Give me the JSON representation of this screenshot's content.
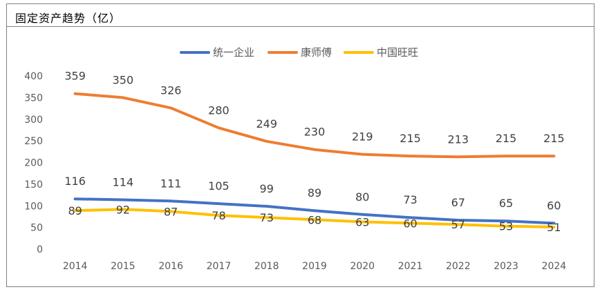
{
  "header": {
    "title": "固定资产趋势（亿）"
  },
  "chart_data": {
    "type": "line",
    "title": "固定资产趋势（亿）",
    "categories": [
      "2014",
      "2015",
      "2016",
      "2017",
      "2018",
      "2019",
      "2020",
      "2021",
      "2022",
      "2023",
      "2024"
    ],
    "series": [
      {
        "name": "统一企业",
        "color": "#4472C4",
        "values": [
          116,
          114,
          111,
          105,
          99,
          89,
          80,
          73,
          67,
          65,
          60
        ]
      },
      {
        "name": "康师傅",
        "color": "#ED7D31",
        "values": [
          359,
          350,
          326,
          280,
          249,
          230,
          219,
          215,
          213,
          215,
          215
        ]
      },
      {
        "name": "中国旺旺",
        "color": "#FFC000",
        "values": [
          89,
          92,
          87,
          78,
          73,
          68,
          63,
          60,
          57,
          53,
          51
        ]
      }
    ],
    "ylim": [
      0,
      400
    ],
    "yticks": [
      0,
      50,
      100,
      150,
      200,
      250,
      300,
      350,
      400
    ],
    "grid": false,
    "legend_position": "top"
  }
}
